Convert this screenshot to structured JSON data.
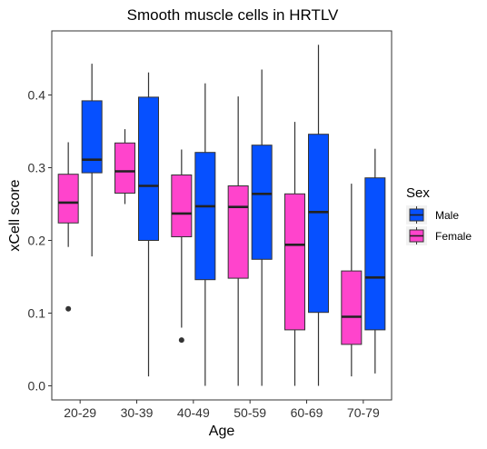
{
  "chart_data": {
    "type": "boxplot",
    "title": "Smooth muscle cells in HRTLV",
    "xlabel": "Age",
    "ylabel": "xCell score",
    "categories": [
      "20-29",
      "30-39",
      "40-49",
      "50-59",
      "60-69",
      "70-79"
    ],
    "ylim": [
      -0.01,
      0.48
    ],
    "yticks": [
      "0.0",
      "0.1",
      "0.2",
      "0.3",
      "0.4"
    ],
    "grid": false,
    "legend": {
      "title": "Sex",
      "position": "right",
      "entries": [
        "Male",
        "Female"
      ]
    },
    "series": [
      {
        "name": "Female",
        "color": "#ff44cc",
        "boxes": [
          {
            "whisker_low": 0.191,
            "q1": 0.224,
            "median": 0.252,
            "q3": 0.291,
            "whisker_high": 0.335,
            "outliers": [
              0.106
            ]
          },
          {
            "whisker_low": 0.25,
            "q1": 0.265,
            "median": 0.295,
            "q3": 0.334,
            "whisker_high": 0.353,
            "outliers": []
          },
          {
            "whisker_low": 0.08,
            "q1": 0.205,
            "median": 0.237,
            "q3": 0.29,
            "whisker_high": 0.325,
            "outliers": [
              0.063
            ]
          },
          {
            "whisker_low": 0.0,
            "q1": 0.148,
            "median": 0.246,
            "q3": 0.275,
            "whisker_high": 0.398,
            "outliers": []
          },
          {
            "whisker_low": 0.0,
            "q1": 0.077,
            "median": 0.194,
            "q3": 0.264,
            "whisker_high": 0.363,
            "outliers": []
          },
          {
            "whisker_low": 0.013,
            "q1": 0.057,
            "median": 0.095,
            "q3": 0.158,
            "whisker_high": 0.278,
            "outliers": []
          }
        ]
      },
      {
        "name": "Male",
        "color": "#0650ff",
        "boxes": [
          {
            "whisker_low": 0.178,
            "q1": 0.293,
            "median": 0.311,
            "q3": 0.392,
            "whisker_high": 0.443,
            "outliers": []
          },
          {
            "whisker_low": 0.013,
            "q1": 0.2,
            "median": 0.275,
            "q3": 0.397,
            "whisker_high": 0.431,
            "outliers": []
          },
          {
            "whisker_low": 0.0,
            "q1": 0.146,
            "median": 0.247,
            "q3": 0.321,
            "whisker_high": 0.416,
            "outliers": []
          },
          {
            "whisker_low": 0.0,
            "q1": 0.174,
            "median": 0.264,
            "q3": 0.331,
            "whisker_high": 0.435,
            "outliers": []
          },
          {
            "whisker_low": 0.0,
            "q1": 0.101,
            "median": 0.239,
            "q3": 0.346,
            "whisker_high": 0.469,
            "outliers": []
          },
          {
            "whisker_low": 0.017,
            "q1": 0.077,
            "median": 0.149,
            "q3": 0.286,
            "whisker_high": 0.326,
            "outliers": []
          }
        ]
      }
    ]
  }
}
